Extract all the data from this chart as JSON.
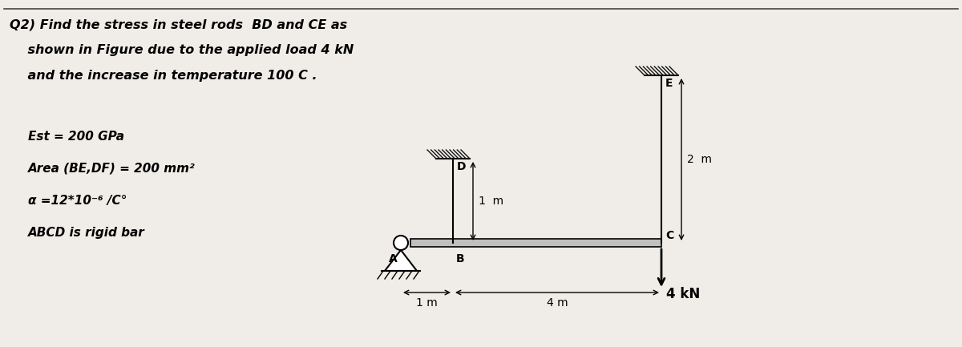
{
  "bg_color": "#b8b0a8",
  "paper_color": "#f0ede8",
  "title_line1": "Q2) Find the stress in steel rods  BD and CE as",
  "title_line2": "    shown in Figure due to the applied load 4 kN",
  "title_line3": "    and the increase in temperature 100 C .",
  "props_line1": "Est = 200 GPa",
  "props_line2": "Area (BE,DF) = 200 mm²",
  "props_line3": "α =12*10⁻⁶ /C°",
  "props_line4": "ABCD is rigid bar",
  "label_A": "A",
  "label_B": "B",
  "label_C": "C",
  "label_D": "D",
  "label_E": "E",
  "dim_1m_horiz": "1 m",
  "dim_4m_horiz": "4 m",
  "dim_1m_vert": "1  m",
  "dim_2m_vert": "2  m",
  "load_label": "4 kN"
}
